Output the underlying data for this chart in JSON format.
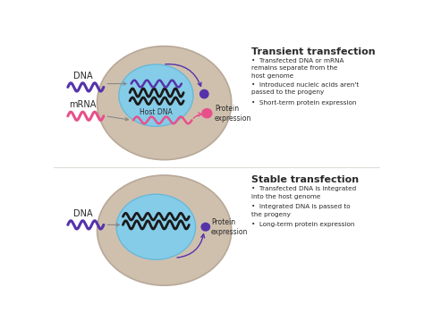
{
  "bg_color": "#ffffff",
  "cell_bg": "#cfc0ae",
  "cell_edge": "#b8a898",
  "nucleus_color": "#85cce8",
  "nucleus_edge": "#6ab8d8",
  "dna_purple": "#5533aa",
  "dna_pink": "#e8508a",
  "dna_black": "#1a1a1a",
  "protein_pink": "#e8508a",
  "protein_purple": "#5533aa",
  "arrow_purple": "#5533aa",
  "arrow_gray": "#888888",
  "text_dark": "#2a2a2a",
  "title1": "Transient transfection",
  "title2": "Stable transfection",
  "b1_1": "Transfected DNA or mRNA\nremains separate from the\nhost genome",
  "b1_2": "Introduced nucleic acids aren't\npassed to the progeny",
  "b1_3": "Short-term protein expression",
  "b2_1": "Transfected DNA is integrated\ninto the host genome",
  "b2_2": "Integrated DNA is passed to\nthe progeny",
  "b2_3": "Long-term protein expression",
  "lbl_dna1": "DNA",
  "lbl_mrna": "mRNA",
  "lbl_dna2": "DNA",
  "lbl_host": "Host DNA",
  "lbl_prot1": "Protein\nexpression",
  "lbl_prot2": "Protein\nexpression"
}
